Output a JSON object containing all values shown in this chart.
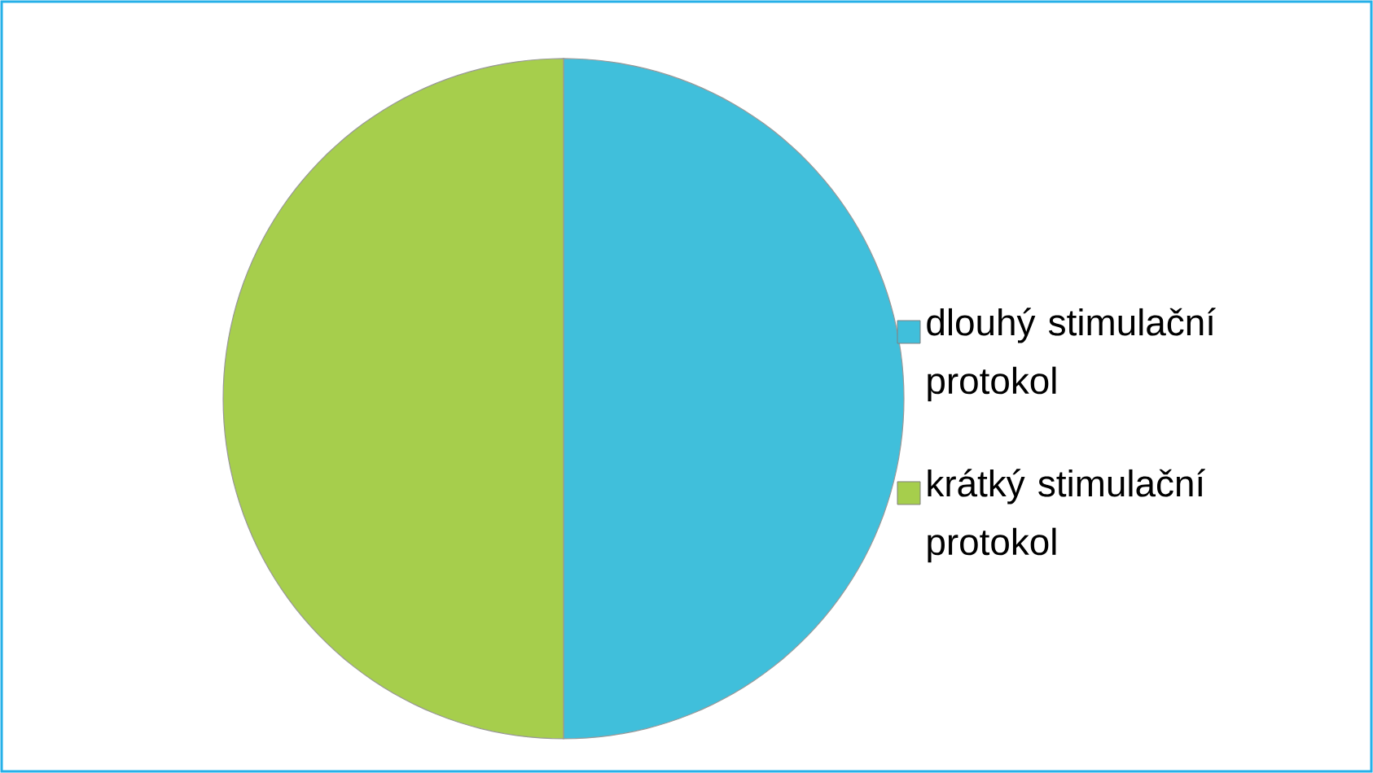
{
  "chart_data": {
    "type": "pie",
    "categories": [
      "dlouhý stimulační protokol",
      "krátký stimulační protokol"
    ],
    "values": [
      50,
      50
    ],
    "colors": [
      "#40bfdb",
      "#a6ce4c"
    ],
    "legend": "right"
  }
}
